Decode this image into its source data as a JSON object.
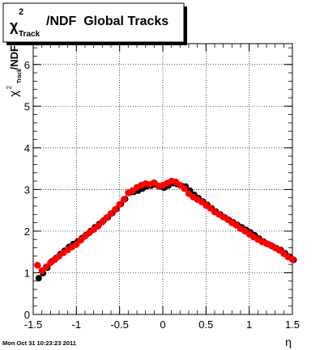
{
  "chart_data": {
    "type": "scatter",
    "title": {
      "symbol": "χ",
      "superscript": "2",
      "subscript": "Track",
      "suffix": "/NDF  Global Tracks"
    },
    "ylabel": {
      "symbol": "χ",
      "superscript": "2",
      "subscript": "Track",
      "suffix": "/NDF"
    },
    "xlabel": "η",
    "xlim": [
      -1.5,
      1.5
    ],
    "ylim": [
      0,
      6.5
    ],
    "x_ticks": [
      -1.5,
      -1,
      -0.5,
      0,
      0.5,
      1,
      1.5
    ],
    "x_tick_labels": [
      "-1.5",
      "-1",
      "-0.5",
      "0",
      "0.5",
      "1",
      "1.5"
    ],
    "y_ticks": [
      0,
      1,
      2,
      3,
      4,
      5,
      6
    ],
    "y_tick_labels": [
      "0",
      "1",
      "2",
      "3",
      "4",
      "5",
      "6"
    ],
    "grid": true,
    "series": [
      {
        "color": "#000000",
        "x": [
          -1.45,
          -1.4,
          -1.35,
          -1.3,
          -1.25,
          -1.2,
          -1.15,
          -1.1,
          -1.05,
          -1.0,
          -0.95,
          -0.9,
          -0.85,
          -0.8,
          -0.75,
          -0.7,
          -0.65,
          -0.6,
          -0.55,
          -0.5,
          -0.45,
          -0.4,
          -0.35,
          -0.3,
          -0.25,
          -0.2,
          -0.15,
          -0.1,
          -0.05,
          0.0,
          0.05,
          0.1,
          0.15,
          0.2,
          0.25,
          0.3,
          0.35,
          0.4,
          0.45,
          0.5,
          0.55,
          0.6,
          0.65,
          0.7,
          0.75,
          0.8,
          0.85,
          0.9,
          0.95,
          1.0,
          1.05,
          1.1,
          1.15,
          1.2,
          1.25,
          1.3,
          1.35,
          1.4,
          1.45,
          1.5
        ],
        "values": [
          0.9,
          1.02,
          1.15,
          1.3,
          1.38,
          1.48,
          1.56,
          1.65,
          1.72,
          1.78,
          1.86,
          1.94,
          2.03,
          2.12,
          2.2,
          2.28,
          2.36,
          2.46,
          2.56,
          2.68,
          2.8,
          2.95,
          2.97,
          3.0,
          3.05,
          3.1,
          3.12,
          3.15,
          3.1,
          3.07,
          3.12,
          3.18,
          3.16,
          3.12,
          3.1,
          3.0,
          2.9,
          2.82,
          2.74,
          2.66,
          2.58,
          2.5,
          2.43,
          2.36,
          2.3,
          2.24,
          2.18,
          2.12,
          2.06,
          2.0,
          1.93,
          1.85,
          1.78,
          1.72,
          1.67,
          1.62,
          1.58,
          1.5,
          1.42,
          1.34
        ]
      },
      {
        "color": "#ff0000",
        "x": [
          -1.45,
          -1.4,
          -1.35,
          -1.3,
          -1.25,
          -1.2,
          -1.15,
          -1.1,
          -1.05,
          -1.0,
          -0.95,
          -0.9,
          -0.85,
          -0.8,
          -0.75,
          -0.7,
          -0.65,
          -0.6,
          -0.55,
          -0.5,
          -0.45,
          -0.4,
          -0.35,
          -0.3,
          -0.25,
          -0.2,
          -0.15,
          -0.1,
          -0.05,
          0.0,
          0.05,
          0.1,
          0.15,
          0.2,
          0.25,
          0.3,
          0.35,
          0.4,
          0.45,
          0.5,
          0.55,
          0.6,
          0.65,
          0.7,
          0.75,
          0.8,
          0.85,
          0.9,
          0.95,
          1.0,
          1.05,
          1.1,
          1.15,
          1.2,
          1.25,
          1.3,
          1.35,
          1.4,
          1.45,
          1.5
        ],
        "values": [
          1.18,
          1.05,
          1.14,
          1.24,
          1.32,
          1.4,
          1.48,
          1.55,
          1.62,
          1.68,
          1.78,
          1.88,
          1.96,
          2.04,
          2.12,
          2.22,
          2.32,
          2.42,
          2.52,
          2.64,
          2.76,
          2.92,
          2.97,
          3.05,
          3.1,
          3.14,
          3.12,
          3.16,
          3.08,
          3.1,
          3.15,
          3.2,
          3.18,
          3.1,
          3.02,
          2.9,
          2.82,
          2.76,
          2.7,
          2.62,
          2.55,
          2.46,
          2.4,
          2.34,
          2.28,
          2.2,
          2.14,
          2.06,
          2.0,
          1.93,
          1.86,
          1.8,
          1.74,
          1.7,
          1.66,
          1.6,
          1.54,
          1.46,
          1.38,
          1.32
        ]
      }
    ]
  },
  "footer": {
    "timestamp": "Mon Oct 31 10:23:23 2011"
  }
}
